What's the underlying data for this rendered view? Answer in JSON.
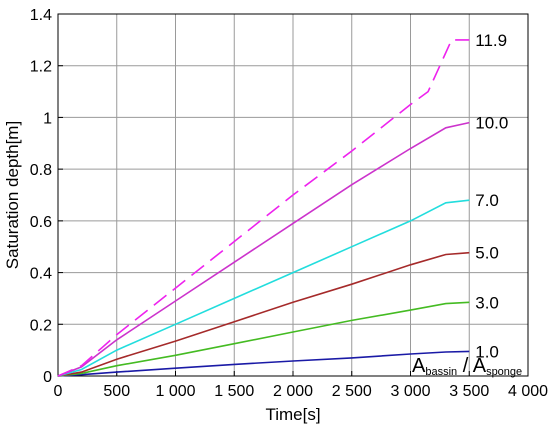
{
  "chart_data": {
    "type": "line",
    "xlabel": "Time[s]",
    "ylabel": "Saturation depth[m]",
    "xlim": [
      0,
      4000
    ],
    "ylim": [
      0,
      1.4
    ],
    "grid": true,
    "x_ticks": [
      0,
      500,
      1000,
      1500,
      2000,
      2500,
      3000,
      3500,
      4000
    ],
    "x_tick_labels": [
      "0",
      "500",
      "1 000",
      "1 500",
      "2 000",
      "2 500",
      "3 000",
      "3 500",
      "4 000"
    ],
    "y_ticks": [
      0,
      0.2,
      0.4,
      0.6,
      0.8,
      1.0,
      1.2,
      1.4
    ],
    "y_tick_labels": [
      "0",
      "0.2",
      "0.4",
      "0.6",
      "0.8",
      "1",
      "1.2",
      "1.4"
    ],
    "ratio_label": {
      "a1": "A",
      "sub1": "bassin",
      "slash": " / ",
      "a2": "A",
      "sub2": "sponge"
    },
    "series": [
      {
        "label": "1.0",
        "color": "#1a1aa6",
        "dashed": false,
        "x": [
          0,
          200,
          500,
          1000,
          1500,
          2000,
          2500,
          3000,
          3300,
          3500
        ],
        "y": [
          0,
          0.005,
          0.015,
          0.03,
          0.045,
          0.058,
          0.07,
          0.085,
          0.093,
          0.095
        ]
      },
      {
        "label": "3.0",
        "color": "#44bb22",
        "dashed": false,
        "x": [
          0,
          200,
          500,
          1000,
          1500,
          2000,
          2500,
          3000,
          3300,
          3500
        ],
        "y": [
          0,
          0.01,
          0.04,
          0.08,
          0.125,
          0.17,
          0.215,
          0.255,
          0.28,
          0.285
        ]
      },
      {
        "label": "5.0",
        "color": "#a52a2a",
        "dashed": false,
        "x": [
          0,
          200,
          500,
          1000,
          1500,
          2000,
          2500,
          3000,
          3300,
          3500
        ],
        "y": [
          0,
          0.015,
          0.065,
          0.135,
          0.21,
          0.285,
          0.355,
          0.43,
          0.47,
          0.477
        ]
      },
      {
        "label": "7.0",
        "color": "#22dddd",
        "dashed": false,
        "x": [
          0,
          200,
          500,
          1000,
          1500,
          2000,
          2500,
          3000,
          3300,
          3500
        ],
        "y": [
          0,
          0.025,
          0.1,
          0.2,
          0.3,
          0.4,
          0.5,
          0.6,
          0.67,
          0.68
        ]
      },
      {
        "label": "10.0",
        "color": "#cc33cc",
        "dashed": false,
        "x": [
          0,
          200,
          500,
          1000,
          1500,
          2000,
          2500,
          3000,
          3300,
          3500
        ],
        "y": [
          0,
          0.035,
          0.14,
          0.29,
          0.44,
          0.59,
          0.74,
          0.88,
          0.96,
          0.98
        ]
      },
      {
        "label": "11.9",
        "color": "#ee22ee",
        "dashed": true,
        "x": [
          0,
          200,
          500,
          1000,
          1500,
          2000,
          2500,
          3000,
          3150,
          3350,
          3500
        ],
        "y": [
          0,
          0.04,
          0.16,
          0.34,
          0.52,
          0.7,
          0.87,
          1.05,
          1.1,
          1.3,
          1.3
        ]
      }
    ]
  }
}
